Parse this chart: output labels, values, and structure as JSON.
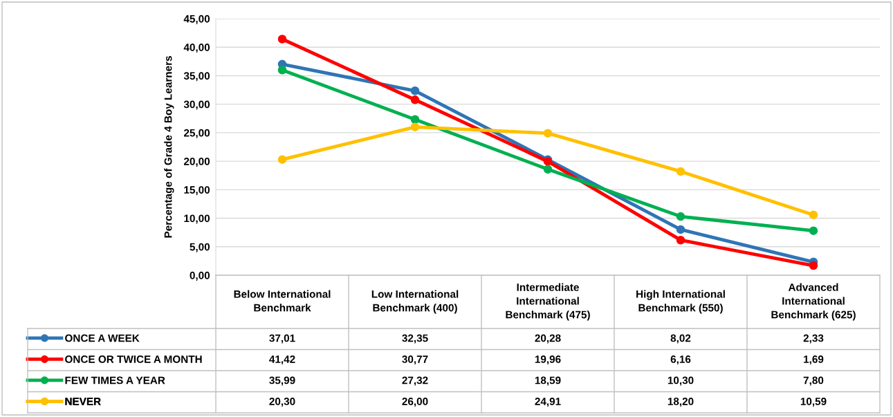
{
  "chart_data": {
    "type": "line",
    "ylabel": "Percentage of Grade 4 Boy Learners",
    "categories": [
      "Below International Benchmark",
      "Low International Benchmark (400)",
      "Intermediate International Benchmark (475)",
      "High International Benchmark (550)",
      "Advanced International Benchmark (625)"
    ],
    "series": [
      {
        "name": "ONCE A WEEK",
        "color": "#2e75b6",
        "values": [
          37.01,
          32.35,
          20.28,
          8.02,
          2.33
        ],
        "value_labels": [
          "37,01",
          "32,35",
          "20,28",
          "8,02",
          "2,33"
        ]
      },
      {
        "name": "ONCE OR TWICE A MONTH",
        "color": "#ff0000",
        "values": [
          41.42,
          30.77,
          19.96,
          6.16,
          1.69
        ],
        "value_labels": [
          "41,42",
          "30,77",
          "19,96",
          "6,16",
          "1,69"
        ]
      },
      {
        "name": "FEW TIMES A YEAR",
        "color": "#00b050",
        "values": [
          35.99,
          27.32,
          18.59,
          10.3,
          7.8
        ],
        "value_labels": [
          "35,99",
          "27,32",
          "18,59",
          "10,30",
          "7,80"
        ]
      },
      {
        "name": "NEVER",
        "color": "#ffc000",
        "values": [
          20.3,
          26.0,
          24.91,
          18.2,
          10.59
        ],
        "value_labels": [
          "20,30",
          "26,00",
          "24,91",
          "18,20",
          "10,59"
        ]
      }
    ],
    "ylim": [
      0,
      45
    ],
    "yticks": [
      {
        "value": 0,
        "label": "0,00"
      },
      {
        "value": 5,
        "label": "5,00"
      },
      {
        "value": 10,
        "label": "10,00"
      },
      {
        "value": 15,
        "label": "15,00"
      },
      {
        "value": 20,
        "label": "20,00"
      },
      {
        "value": 25,
        "label": "25,00"
      },
      {
        "value": 30,
        "label": "30,00"
      },
      {
        "value": 35,
        "label": "35,00"
      },
      {
        "value": 40,
        "label": "40,00"
      },
      {
        "value": 45,
        "label": "45,00"
      }
    ],
    "grid": "y",
    "legend": "bottom",
    "marker": "circle",
    "line_style": "solid"
  }
}
